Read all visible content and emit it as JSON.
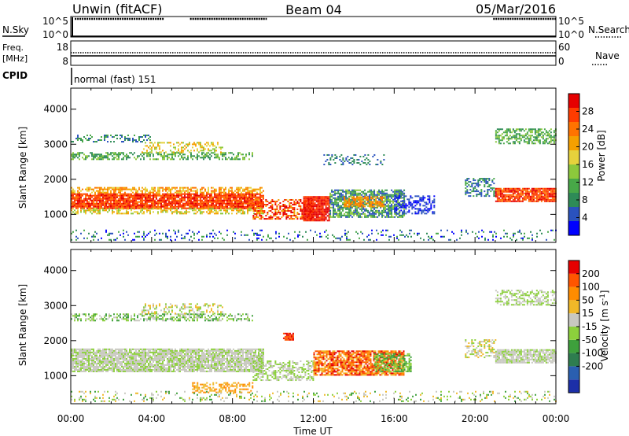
{
  "header": {
    "station": "Unwin (fitACF)",
    "beam": "Beam 04",
    "date": "05/Mar/2016"
  },
  "strips": {
    "nsky": {
      "label": "N.Sky",
      "left_ticks": [
        "10^5",
        "10^0"
      ],
      "right_ticks": [
        "10^5",
        "10^0"
      ],
      "right_label": "N.Search",
      "coverage_hours": [
        [
          0.2,
          4.6
        ],
        [
          5.9,
          9.7
        ],
        [
          20.9,
          24.0
        ]
      ]
    },
    "freq": {
      "label_line1": "Freq.",
      "label_line2": "[MHz]",
      "left_ticks": [
        "18",
        "8"
      ],
      "right_ticks": [
        "60",
        "0"
      ],
      "right_label": "Nave"
    },
    "cpid": {
      "label": "CPID",
      "value": "normal (fast) 151"
    }
  },
  "chart_data": [
    {
      "type": "heatmap",
      "name": "power-panel",
      "ylabel": "Slant Range [km]",
      "ylim": [
        200,
        4600
      ],
      "yticks": [
        "1000",
        "2000",
        "3000",
        "4000"
      ],
      "xlim_hours": [
        0,
        24
      ],
      "colorbar": {
        "label": "Power [dB]",
        "ticks": [
          "4",
          "8",
          "12",
          "16",
          "20",
          "24",
          "28"
        ],
        "range": [
          0,
          32
        ],
        "colors": [
          "#0000ff",
          "#2a52be",
          "#2e8b57",
          "#48a848",
          "#8cc83c",
          "#e6d23c",
          "#f5a000",
          "#ff7300",
          "#ff3c00",
          "#e60000"
        ]
      }
    },
    {
      "type": "heatmap",
      "name": "velocity-panel",
      "ylabel": "Slant Range [km]",
      "ylim": [
        200,
        4600
      ],
      "yticks": [
        "1000",
        "2000",
        "3000",
        "4000"
      ],
      "xlim_hours": [
        0,
        24
      ],
      "colorbar": {
        "label_main": "Velocity [m s",
        "label_sup": "-1",
        "label_end": "]",
        "ticks": [
          "200",
          "100",
          "50",
          "15",
          "-15",
          "-50",
          "-100",
          "-200"
        ],
        "colors": [
          "#1c2fa8",
          "#2a5fb0",
          "#2e7d4f",
          "#3ea03c",
          "#8cd03c",
          "#c8c8c0",
          "#f0b828",
          "#ff8c00",
          "#ff5500",
          "#e60000"
        ]
      }
    }
  ],
  "xaxis": {
    "ticks": [
      "00:00",
      "04:00",
      "08:00",
      "12:00",
      "16:00",
      "20:00",
      "00:00"
    ],
    "label": "Time UT"
  }
}
